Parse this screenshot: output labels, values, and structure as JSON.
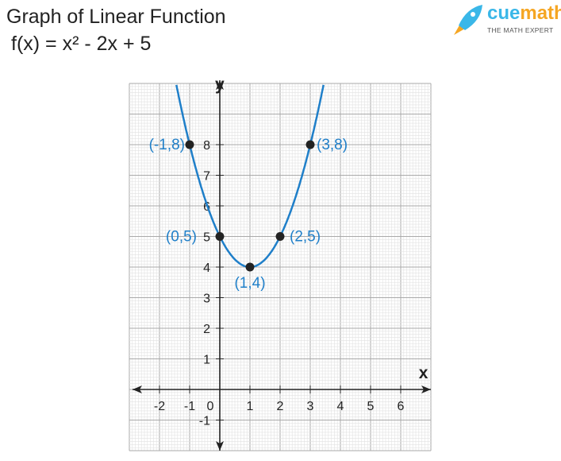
{
  "title": "Graph of Linear Function",
  "subtitle": "f(x) = x² - 2x + 5",
  "logo": {
    "name": "cuemath",
    "part1": "cue",
    "part2": "math",
    "tagline": "THE MATH EXPERT",
    "colors": [
      "#3ab7e8",
      "#f5a623"
    ]
  },
  "chart_data": {
    "type": "line",
    "title": "Graph of Linear Function",
    "function": "f(x) = x² - 2x + 5",
    "xlabel": "x",
    "ylabel": "y",
    "xlim": [
      -3,
      7
    ],
    "ylim": [
      -2,
      10
    ],
    "grid": true,
    "xticks": [
      -2,
      -1,
      0,
      1,
      2,
      3,
      4,
      5,
      6
    ],
    "yticks": [
      -1,
      1,
      2,
      3,
      4,
      5,
      6,
      7,
      8
    ],
    "curve_color": "#1f7fc9",
    "points": [
      {
        "x": -1,
        "y": 8,
        "label": "(-1,8)"
      },
      {
        "x": 0,
        "y": 5,
        "label": "(0,5)"
      },
      {
        "x": 1,
        "y": 4,
        "label": "(1,4)"
      },
      {
        "x": 2,
        "y": 5,
        "label": "(2,5)"
      },
      {
        "x": 3,
        "y": 8,
        "label": "(3,8)"
      }
    ]
  }
}
